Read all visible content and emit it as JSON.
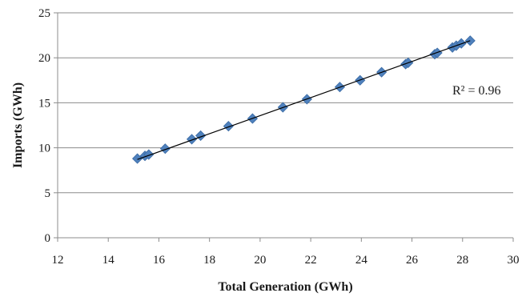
{
  "chart_data": {
    "type": "scatter",
    "xlabel": "Total Generation (GWh)",
    "ylabel": "Imports (GWh)",
    "xlim": [
      12,
      30
    ],
    "ylim": [
      0,
      25
    ],
    "x_ticks": [
      "12",
      "14",
      "16",
      "18",
      "20",
      "22",
      "24",
      "26",
      "28",
      "30"
    ],
    "y_ticks": [
      "0",
      "5",
      "10",
      "15",
      "20",
      "25"
    ],
    "grid": "horizontal",
    "legend": "none",
    "annotation": "R² = 0.96",
    "colors": {
      "marker": "#4f81bd",
      "marker_edge": "#3a6aa3",
      "trendline": "#000000",
      "gridline": "#8c8c8c",
      "axis": "#8c8c8c"
    },
    "series": [
      {
        "x": [
          15.15,
          15.45,
          15.6,
          16.25,
          17.3,
          17.65,
          18.75,
          19.7,
          20.9,
          21.85,
          23.15,
          23.95,
          24.8,
          25.75,
          25.85,
          26.9,
          27,
          27.6,
          27.75,
          27.95,
          28.3
        ],
        "y": [
          8.8,
          9.1,
          9.25,
          9.9,
          10.95,
          11.35,
          12.4,
          13.25,
          14.5,
          15.4,
          16.75,
          17.5,
          18.4,
          19.3,
          19.45,
          20.4,
          20.55,
          21.15,
          21.35,
          21.6,
          21.9
        ]
      }
    ],
    "trendline": {
      "x": [
        15.15,
        28.3
      ],
      "y": [
        8.7,
        21.9
      ]
    }
  }
}
